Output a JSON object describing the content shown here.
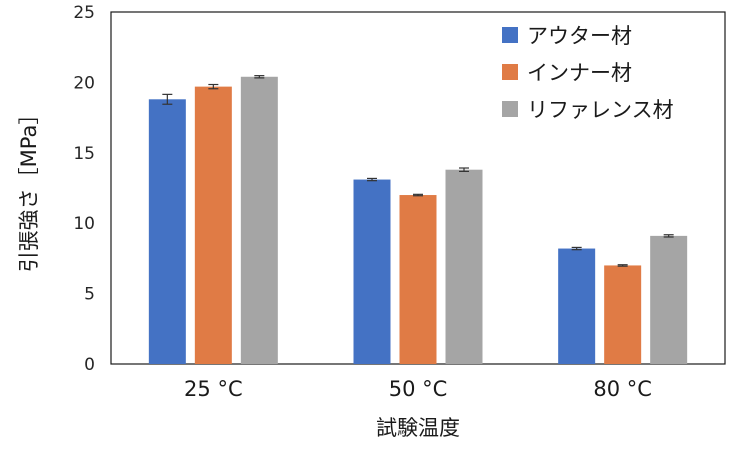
{
  "chart_data": {
    "type": "bar",
    "title": "",
    "xlabel": "試験温度",
    "ylabel": "引張強さ［MPa］",
    "categories": [
      "25 °C",
      "50 °C",
      "80 °C"
    ],
    "ylim": [
      0,
      25
    ],
    "yticks": [
      0,
      5,
      10,
      15,
      20,
      25
    ],
    "grid": false,
    "legend_position": "top-right",
    "series": [
      {
        "name": "アウター材",
        "color": "#4472c4",
        "values": [
          18.8,
          13.1,
          8.2
        ],
        "errors": [
          0.35,
          0.08,
          0.08
        ]
      },
      {
        "name": "インナー材",
        "color": "#e07b45",
        "values": [
          19.7,
          12.0,
          7.0
        ],
        "errors": [
          0.15,
          0.05,
          0.05
        ]
      },
      {
        "name": "リファレンス材",
        "color": "#a5a5a5",
        "values": [
          20.4,
          13.8,
          9.1
        ],
        "errors": [
          0.08,
          0.12,
          0.08
        ]
      }
    ]
  }
}
